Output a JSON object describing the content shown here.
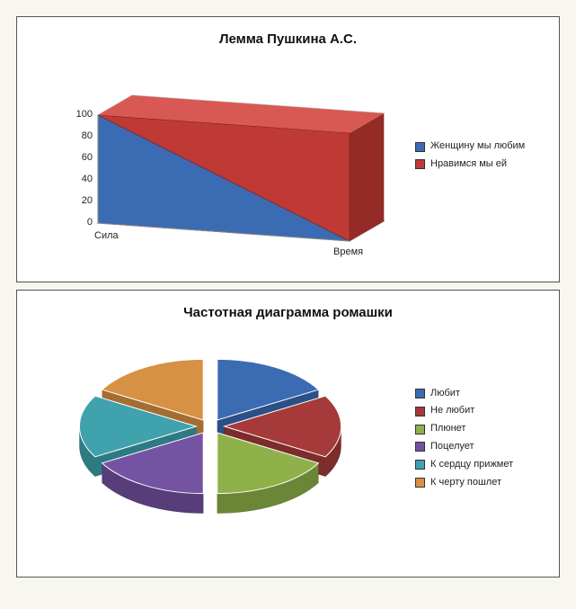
{
  "chart1": {
    "type": "3d-area",
    "title": "Лемма Пушкина А.С.",
    "title_fontsize": 15,
    "x_axis_labels": [
      "Сила",
      "Время"
    ],
    "y_ticks": [
      0,
      20,
      40,
      60,
      80,
      100
    ],
    "ylim": [
      0,
      100
    ],
    "series": [
      {
        "label": "Женщину мы любим",
        "color": "#3b6bb3",
        "color_side": "#2d528c",
        "color_top": "#5a86c8",
        "start": 100,
        "end": 0
      },
      {
        "label": "Нравимся мы ей",
        "color": "#c03a35",
        "color_side": "#952b27",
        "color_top": "#d85954",
        "start": 0,
        "end": 100
      }
    ],
    "background_color": "#ffffff",
    "grid_color": "#c8c8c8",
    "axis_color": "#888888",
    "label_fontsize": 11
  },
  "chart2": {
    "type": "3d-pie-exploded",
    "title": "Частотная диаграмма ромашки",
    "title_fontsize": 15,
    "slices": [
      {
        "label": "Любит",
        "value": 16.67,
        "color": "#3b6bb3",
        "color_dark": "#2b4f86"
      },
      {
        "label": "Не любит",
        "value": 16.67,
        "color": "#a63a3a",
        "color_dark": "#7d2b2b"
      },
      {
        "label": "Плюнет",
        "value": 16.67,
        "color": "#8fb14a",
        "color_dark": "#6c8637"
      },
      {
        "label": "Поцелует",
        "value": 16.67,
        "color": "#7453a2",
        "color_dark": "#573d7a"
      },
      {
        "label": "К сердцу прижмет",
        "value": 16.67,
        "color": "#3fa2ad",
        "color_dark": "#2e7a82"
      },
      {
        "label": "К черту пошлет",
        "value": 16.67,
        "color": "#d79144",
        "color_dark": "#a46d31"
      }
    ],
    "background_color": "#ffffff",
    "label_fontsize": 11,
    "explode": 0.12,
    "depth": 22,
    "tilt": 0.52
  }
}
